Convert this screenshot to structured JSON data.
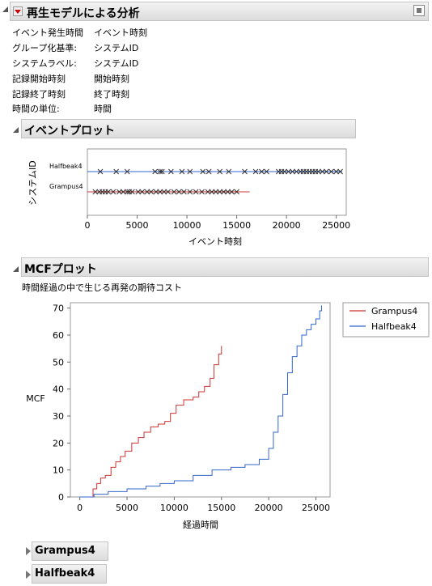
{
  "report": {
    "title": "再生モデルによる分析",
    "fields": [
      {
        "key": "イベント発生時間",
        "value": "イベント時刻"
      },
      {
        "key": "グループ化基準:",
        "value": "システムID"
      },
      {
        "key": "システムラベル:",
        "value": "システムID"
      },
      {
        "key": "記録開始時刻",
        "value": "開始時刻"
      },
      {
        "key": "記録終了時刻",
        "value": "終了時刻"
      },
      {
        "key": "時間の単位:",
        "value": "時間"
      }
    ]
  },
  "event_plot": {
    "title": "イベントプロット",
    "ylabel": "システムID",
    "xlabel": "イベント時刻",
    "x_ticks": [
      "0",
      "5000",
      "10000",
      "15000",
      "20000",
      "25000"
    ],
    "systems": [
      "Halfbeak4",
      "Grampus4"
    ]
  },
  "mcf_plot": {
    "title": "MCFプロット",
    "subtitle": "時間経過の中で生じる再発の期待コスト",
    "ylabel": "MCF",
    "xlabel": "経過時間",
    "x_ticks": [
      "0",
      "5000",
      "10000",
      "15000",
      "20000",
      "25000"
    ],
    "y_ticks": [
      "0",
      "10",
      "20",
      "30",
      "40",
      "50",
      "60",
      "70"
    ],
    "legend": [
      {
        "name": "Grampus4",
        "color": "#cc3333"
      },
      {
        "name": "Halfbeak4",
        "color": "#3366cc"
      }
    ]
  },
  "sections": {
    "grampus": "Grampus4",
    "halfbeak": "Halfbeak4"
  },
  "chart_data": [
    {
      "type": "scatter",
      "title": "イベントプロット",
      "xlabel": "イベント時刻",
      "ylabel": "システムID",
      "xlim": [
        0,
        26000
      ],
      "categories": [
        "Grampus4",
        "Halfbeak4"
      ],
      "series": [
        {
          "name": "Halfbeak4",
          "start": 0,
          "end": 25600,
          "x": [
            1300,
            2900,
            4000,
            6800,
            7300,
            7500,
            8400,
            9500,
            10300,
            11600,
            12200,
            13300,
            14200,
            15800,
            16900,
            17500,
            18000,
            19200,
            19500,
            19800,
            20200,
            20600,
            21000,
            21400,
            21700,
            22000,
            22300,
            22600,
            22900,
            23200,
            23600,
            24000,
            24500,
            25000,
            25400
          ]
        },
        {
          "name": "Grampus4",
          "start": 0,
          "end": 16300,
          "x": [
            800,
            1200,
            1500,
            1800,
            2100,
            2600,
            3200,
            3600,
            4000,
            4200,
            4500,
            5100,
            5500,
            6000,
            6400,
            6900,
            7300,
            7700,
            8100,
            8700,
            9200,
            9700,
            10300,
            10900,
            11500,
            12100,
            12500,
            12900,
            13300,
            13700,
            14100,
            14500,
            15000
          ]
        }
      ]
    },
    {
      "type": "line",
      "title": "MCFプロット",
      "xlabel": "経過時間",
      "ylabel": "MCF",
      "xlim": [
        -1000,
        26500
      ],
      "ylim": [
        0,
        72
      ],
      "series": [
        {
          "name": "Grampus4",
          "color": "#cc3333",
          "x": [
            1000,
            1400,
            1800,
            2200,
            2700,
            3300,
            3800,
            4300,
            4800,
            5500,
            6200,
            6800,
            7500,
            8300,
            9000,
            9600,
            10200,
            11000,
            12000,
            12600,
            13200,
            13800,
            14200,
            14700,
            15000
          ],
          "y": [
            0,
            3,
            5,
            7,
            8,
            11,
            13,
            15,
            17,
            20,
            22,
            24,
            26,
            27,
            28,
            31,
            34,
            36,
            37,
            39,
            41,
            44,
            49,
            53,
            56
          ]
        },
        {
          "name": "Halfbeak4",
          "color": "#3366cc",
          "x": [
            0,
            1500,
            3000,
            5000,
            7000,
            8500,
            10000,
            12000,
            14000,
            16000,
            17500,
            19000,
            20000,
            20500,
            21000,
            21500,
            22000,
            22500,
            23000,
            23500,
            24000,
            24500,
            25000,
            25400,
            25600
          ],
          "y": [
            0,
            1,
            2,
            3,
            4,
            5,
            6,
            8,
            10,
            11,
            12,
            14,
            18,
            24,
            30,
            38,
            46,
            52,
            56,
            60,
            62,
            64,
            66,
            69,
            71
          ]
        }
      ]
    }
  ]
}
